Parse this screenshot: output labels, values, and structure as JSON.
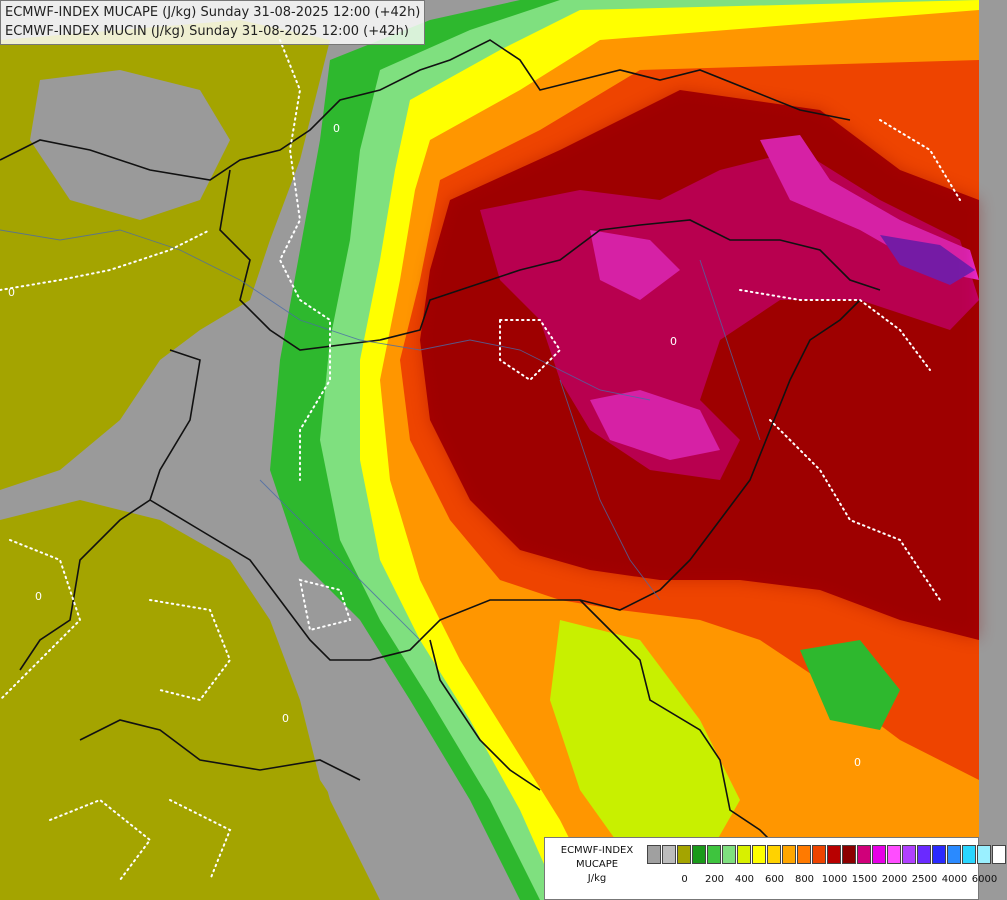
{
  "header": {
    "line1": "ECMWF-INDEX MUCAPE (J/kg) Sunday 31-08-2025 12:00 (+42h)",
    "line2": "ECMWF-INDEX MUCIN (J/kg) Sunday 31-08-2025 12:00 (+42h)"
  },
  "legend": {
    "title_line1": "ECMWF-INDEX",
    "title_line2": "MUCAPE",
    "unit": "J/kg",
    "colors": [
      "#a0a0a0",
      "#bcbcbc",
      "#a4a400",
      "#1a9a1a",
      "#3ec43e",
      "#7fe07f",
      "#d8f000",
      "#ffff00",
      "#ffd200",
      "#ffa600",
      "#ff7a00",
      "#ee4400",
      "#b80000",
      "#8c0000",
      "#d0007a",
      "#e600e6",
      "#ff4dff",
      "#b040ff",
      "#6a2aff",
      "#2a2aff",
      "#2a8aff",
      "#2ad6ff",
      "#9af0ff",
      "#ffffff"
    ],
    "ticks": [
      "0",
      "200",
      "400",
      "600",
      "800",
      "1000",
      "1500",
      "2000",
      "2500",
      "4000",
      "6000"
    ]
  },
  "map": {
    "contour_label": "0"
  }
}
